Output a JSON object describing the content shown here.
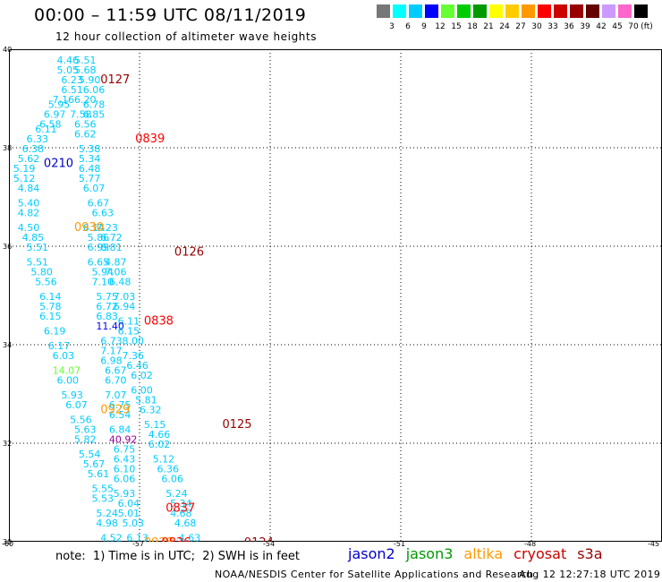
{
  "header": {
    "title": "00:00 – 11:59 UTC 08/11/2019",
    "subtitle": "12 hour collection of altimeter wave heights"
  },
  "color_scale": {
    "unit": "(ft)",
    "bins": [
      {
        "label": "3",
        "color": "#777777"
      },
      {
        "label": "6",
        "color": "#00ffff"
      },
      {
        "label": "9",
        "color": "#00ccff"
      },
      {
        "label": "12",
        "color": "#0000ff"
      },
      {
        "label": "15",
        "color": "#66ff33"
      },
      {
        "label": "18",
        "color": "#00cc00"
      },
      {
        "label": "21",
        "color": "#009900"
      },
      {
        "label": "24",
        "color": "#ffff00"
      },
      {
        "label": "27",
        "color": "#ffcc00"
      },
      {
        "label": "30",
        "color": "#ff9900"
      },
      {
        "label": "33",
        "color": "#ff0000"
      },
      {
        "label": "36",
        "color": "#cc0000"
      },
      {
        "label": "39",
        "color": "#990000"
      },
      {
        "label": "42",
        "color": "#660000"
      },
      {
        "label": "45",
        "color": "#cc99ff"
      },
      {
        "label": "70",
        "color": "#ff66cc"
      },
      {
        "label": "",
        "color": "#000000"
      }
    ]
  },
  "map": {
    "lat_ticks": [
      "40",
      "38",
      "36",
      "34",
      "32",
      "30"
    ],
    "lon_ticks": [
      "-60",
      "-57",
      "-54",
      "-51",
      "-48",
      "-45"
    ],
    "pass_labels": [
      {
        "text": "0127",
        "lat": 39.4,
        "lon": -57.9,
        "color": "#990000"
      },
      {
        "text": "0839",
        "lat": 38.2,
        "lon": -57.1,
        "color": "#ff0000"
      },
      {
        "text": "0210",
        "lat": 37.7,
        "lon": -59.2,
        "color": "#0000cc"
      },
      {
        "text": "0930",
        "lat": 36.4,
        "lon": -58.5,
        "color": "#ff9900"
      },
      {
        "text": "0126",
        "lat": 35.9,
        "lon": -56.2,
        "color": "#990000"
      },
      {
        "text": "0838",
        "lat": 34.5,
        "lon": -56.9,
        "color": "#ff0000"
      },
      {
        "text": "0929",
        "lat": 32.7,
        "lon": -57.9,
        "color": "#ff9900"
      },
      {
        "text": "0125",
        "lat": 32.4,
        "lon": -55.1,
        "color": "#990000"
      },
      {
        "text": "0837",
        "lat": 30.7,
        "lon": -56.4,
        "color": "#ff0000"
      },
      {
        "text": "0124",
        "lat": 30.0,
        "lon": -54.6,
        "color": "#990000"
      },
      {
        "text": "0928",
        "lat": 30.0,
        "lon": -56.9,
        "color": "#ff9900"
      },
      {
        "text": "0836",
        "lat": 30.0,
        "lon": -56.5,
        "color": "#ff0000"
      }
    ],
    "values": [
      {
        "text": "4.46",
        "lat": 39.8,
        "lon": -58.9,
        "color": "#00ccff"
      },
      {
        "text": "5.51",
        "lat": 39.8,
        "lon": -58.5,
        "color": "#00ccff"
      },
      {
        "text": "5.05",
        "lat": 39.6,
        "lon": -58.9,
        "color": "#00ccff"
      },
      {
        "text": "5.68",
        "lat": 39.6,
        "lon": -58.5,
        "color": "#00ccff"
      },
      {
        "text": "6.23",
        "lat": 39.4,
        "lon": -58.8,
        "color": "#00ccff"
      },
      {
        "text": "5.90",
        "lat": 39.4,
        "lon": -58.4,
        "color": "#00ccff"
      },
      {
        "text": "6.51",
        "lat": 39.2,
        "lon": -58.8,
        "color": "#00ccff"
      },
      {
        "text": "6.06",
        "lat": 39.2,
        "lon": -58.3,
        "color": "#00ccff"
      },
      {
        "text": "7.16",
        "lat": 39.0,
        "lon": -59.0,
        "color": "#00ccff"
      },
      {
        "text": "6.20",
        "lat": 39.0,
        "lon": -58.5,
        "color": "#00ccff"
      },
      {
        "text": "5.95",
        "lat": 38.9,
        "lon": -59.1,
        "color": "#00ccff"
      },
      {
        "text": "6.78",
        "lat": 38.9,
        "lon": -58.3,
        "color": "#00ccff"
      },
      {
        "text": "6.97",
        "lat": 38.7,
        "lon": -59.2,
        "color": "#00ccff"
      },
      {
        "text": "7.58",
        "lat": 38.7,
        "lon": -58.6,
        "color": "#00ccff"
      },
      {
        "text": "6.85",
        "lat": 38.7,
        "lon": -58.3,
        "color": "#00ccff"
      },
      {
        "text": "6.58",
        "lat": 38.5,
        "lon": -59.3,
        "color": "#00ccff"
      },
      {
        "text": "6.56",
        "lat": 38.5,
        "lon": -58.5,
        "color": "#00ccff"
      },
      {
        "text": "6.11",
        "lat": 38.4,
        "lon": -59.4,
        "color": "#00ccff"
      },
      {
        "text": "6.62",
        "lat": 38.3,
        "lon": -58.5,
        "color": "#00ccff"
      },
      {
        "text": "6.33",
        "lat": 38.2,
        "lon": -59.6,
        "color": "#00ccff"
      },
      {
        "text": "6.38",
        "lat": 38.0,
        "lon": -59.7,
        "color": "#00ccff"
      },
      {
        "text": "5.38",
        "lat": 38.0,
        "lon": -58.4,
        "color": "#00ccff"
      },
      {
        "text": "5.62",
        "lat": 37.8,
        "lon": -59.8,
        "color": "#00ccff"
      },
      {
        "text": "5.34",
        "lat": 37.8,
        "lon": -58.4,
        "color": "#00ccff"
      },
      {
        "text": "5.19",
        "lat": 37.6,
        "lon": -59.9,
        "color": "#00ccff"
      },
      {
        "text": "6.48",
        "lat": 37.6,
        "lon": -58.4,
        "color": "#00ccff"
      },
      {
        "text": "5.12",
        "lat": 37.4,
        "lon": -59.9,
        "color": "#00ccff"
      },
      {
        "text": "5.77",
        "lat": 37.4,
        "lon": -58.4,
        "color": "#00ccff"
      },
      {
        "text": "4.84",
        "lat": 37.2,
        "lon": -59.8,
        "color": "#00ccff"
      },
      {
        "text": "6.07",
        "lat": 37.2,
        "lon": -58.3,
        "color": "#00ccff"
      },
      {
        "text": "5.40",
        "lat": 36.9,
        "lon": -59.8,
        "color": "#00ccff"
      },
      {
        "text": "6.67",
        "lat": 36.9,
        "lon": -58.2,
        "color": "#00ccff"
      },
      {
        "text": "4.82",
        "lat": 36.7,
        "lon": -59.8,
        "color": "#00ccff"
      },
      {
        "text": "6.63",
        "lat": 36.7,
        "lon": -58.1,
        "color": "#00ccff"
      },
      {
        "text": "4.50",
        "lat": 36.4,
        "lon": -59.8,
        "color": "#00ccff"
      },
      {
        "text": "6.14",
        "lat": 36.4,
        "lon": -58.3,
        "color": "#00ccff"
      },
      {
        "text": "7.23",
        "lat": 36.4,
        "lon": -58.0,
        "color": "#00ccff"
      },
      {
        "text": "4.85",
        "lat": 36.2,
        "lon": -59.7,
        "color": "#00ccff"
      },
      {
        "text": "5.86",
        "lat": 36.2,
        "lon": -58.2,
        "color": "#00ccff"
      },
      {
        "text": "6.72",
        "lat": 36.2,
        "lon": -57.9,
        "color": "#00ccff"
      },
      {
        "text": "5.51",
        "lat": 36.0,
        "lon": -59.6,
        "color": "#00ccff"
      },
      {
        "text": "6.99",
        "lat": 36.0,
        "lon": -58.2,
        "color": "#00ccff"
      },
      {
        "text": "6.81",
        "lat": 36.0,
        "lon": -57.9,
        "color": "#00ccff"
      },
      {
        "text": "5.51",
        "lat": 35.7,
        "lon": -59.6,
        "color": "#00ccff"
      },
      {
        "text": "6.65",
        "lat": 35.7,
        "lon": -58.2,
        "color": "#00ccff"
      },
      {
        "text": "4.87",
        "lat": 35.7,
        "lon": -57.8,
        "color": "#00ccff"
      },
      {
        "text": "5.80",
        "lat": 35.5,
        "lon": -59.5,
        "color": "#00ccff"
      },
      {
        "text": "5.94",
        "lat": 35.5,
        "lon": -58.1,
        "color": "#00ccff"
      },
      {
        "text": "7.06",
        "lat": 35.5,
        "lon": -57.8,
        "color": "#00ccff"
      },
      {
        "text": "5.56",
        "lat": 35.3,
        "lon": -59.4,
        "color": "#00ccff"
      },
      {
        "text": "7.10",
        "lat": 35.3,
        "lon": -58.1,
        "color": "#00ccff"
      },
      {
        "text": "6.48",
        "lat": 35.3,
        "lon": -57.7,
        "color": "#00ccff"
      },
      {
        "text": "6.14",
        "lat": 35.0,
        "lon": -59.3,
        "color": "#00ccff"
      },
      {
        "text": "5.75",
        "lat": 35.0,
        "lon": -58.0,
        "color": "#00ccff"
      },
      {
        "text": "7.03",
        "lat": 35.0,
        "lon": -57.6,
        "color": "#00ccff"
      },
      {
        "text": "5.78",
        "lat": 34.8,
        "lon": -59.3,
        "color": "#00ccff"
      },
      {
        "text": "6.72",
        "lat": 34.8,
        "lon": -58.0,
        "color": "#00ccff"
      },
      {
        "text": "6.94",
        "lat": 34.8,
        "lon": -57.6,
        "color": "#00ccff"
      },
      {
        "text": "6.15",
        "lat": 34.6,
        "lon": -59.3,
        "color": "#00ccff"
      },
      {
        "text": "6.83",
        "lat": 34.6,
        "lon": -58.0,
        "color": "#00ccff"
      },
      {
        "text": "6.11",
        "lat": 34.5,
        "lon": -57.5,
        "color": "#00ccff"
      },
      {
        "text": "6.19",
        "lat": 34.3,
        "lon": -59.2,
        "color": "#00ccff"
      },
      {
        "text": "11.40",
        "lat": 34.4,
        "lon": -58.0,
        "color": "#0000ff"
      },
      {
        "text": "6.15",
        "lat": 34.3,
        "lon": -57.5,
        "color": "#00ccff"
      },
      {
        "text": "6.73",
        "lat": 34.1,
        "lon": -57.9,
        "color": "#00ccff"
      },
      {
        "text": "8.00",
        "lat": 34.1,
        "lon": -57.4,
        "color": "#00ccff"
      },
      {
        "text": "6.17",
        "lat": 34.0,
        "lon": -59.1,
        "color": "#00ccff"
      },
      {
        "text": "7.17",
        "lat": 33.9,
        "lon": -57.9,
        "color": "#00ccff"
      },
      {
        "text": "7.36",
        "lat": 33.8,
        "lon": -57.4,
        "color": "#00ccff"
      },
      {
        "text": "6.03",
        "lat": 33.8,
        "lon": -59.0,
        "color": "#00ccff"
      },
      {
        "text": "6.98",
        "lat": 33.7,
        "lon": -57.9,
        "color": "#00ccff"
      },
      {
        "text": "6.46",
        "lat": 33.6,
        "lon": -57.3,
        "color": "#00ccff"
      },
      {
        "text": "14.07",
        "lat": 33.5,
        "lon": -59.0,
        "color": "#66ff33"
      },
      {
        "text": "6.67",
        "lat": 33.5,
        "lon": -57.8,
        "color": "#00ccff"
      },
      {
        "text": "6.02",
        "lat": 33.4,
        "lon": -57.2,
        "color": "#00ccff"
      },
      {
        "text": "6.00",
        "lat": 33.3,
        "lon": -58.9,
        "color": "#00ccff"
      },
      {
        "text": "6.70",
        "lat": 33.3,
        "lon": -57.8,
        "color": "#00ccff"
      },
      {
        "text": "6.00",
        "lat": 33.1,
        "lon": -57.2,
        "color": "#00ccff"
      },
      {
        "text": "5.93",
        "lat": 33.0,
        "lon": -58.8,
        "color": "#00ccff"
      },
      {
        "text": "7.07",
        "lat": 33.0,
        "lon": -57.8,
        "color": "#00ccff"
      },
      {
        "text": "5.81",
        "lat": 32.9,
        "lon": -57.1,
        "color": "#00ccff"
      },
      {
        "text": "6.07",
        "lat": 32.8,
        "lon": -58.7,
        "color": "#00ccff"
      },
      {
        "text": "6.75",
        "lat": 32.8,
        "lon": -57.7,
        "color": "#00ccff"
      },
      {
        "text": "6.32",
        "lat": 32.7,
        "lon": -57.0,
        "color": "#00ccff"
      },
      {
        "text": "5.56",
        "lat": 32.5,
        "lon": -58.6,
        "color": "#00ccff"
      },
      {
        "text": "6.54",
        "lat": 32.6,
        "lon": -57.7,
        "color": "#00ccff"
      },
      {
        "text": "5.15",
        "lat": 32.4,
        "lon": -56.9,
        "color": "#00ccff"
      },
      {
        "text": "5.63",
        "lat": 32.3,
        "lon": -58.5,
        "color": "#00ccff"
      },
      {
        "text": "6.84",
        "lat": 32.3,
        "lon": -57.7,
        "color": "#00ccff"
      },
      {
        "text": "4.66",
        "lat": 32.2,
        "lon": -56.8,
        "color": "#00ccff"
      },
      {
        "text": "5.82",
        "lat": 32.1,
        "lon": -58.5,
        "color": "#00ccff"
      },
      {
        "text": "40.92",
        "lat": 32.1,
        "lon": -57.7,
        "color": "#990099"
      },
      {
        "text": "6.02",
        "lat": 32.0,
        "lon": -56.8,
        "color": "#00ccff"
      },
      {
        "text": "5.54",
        "lat": 31.8,
        "lon": -58.4,
        "color": "#00ccff"
      },
      {
        "text": "6.75",
        "lat": 31.9,
        "lon": -57.6,
        "color": "#00ccff"
      },
      {
        "text": "5.12",
        "lat": 31.7,
        "lon": -56.7,
        "color": "#00ccff"
      },
      {
        "text": "5.67",
        "lat": 31.6,
        "lon": -58.3,
        "color": "#00ccff"
      },
      {
        "text": "6.43",
        "lat": 31.7,
        "lon": -57.6,
        "color": "#00ccff"
      },
      {
        "text": "6.36",
        "lat": 31.5,
        "lon": -56.6,
        "color": "#00ccff"
      },
      {
        "text": "6.10",
        "lat": 31.5,
        "lon": -57.6,
        "color": "#00ccff"
      },
      {
        "text": "5.61",
        "lat": 31.4,
        "lon": -58.2,
        "color": "#00ccff"
      },
      {
        "text": "6.06",
        "lat": 31.3,
        "lon": -57.6,
        "color": "#00ccff"
      },
      {
        "text": "6.06",
        "lat": 31.3,
        "lon": -56.5,
        "color": "#00ccff"
      },
      {
        "text": "5.55",
        "lat": 31.1,
        "lon": -58.1,
        "color": "#00ccff"
      },
      {
        "text": "5.93",
        "lat": 31.0,
        "lon": -57.6,
        "color": "#00ccff"
      },
      {
        "text": "5.24",
        "lat": 31.0,
        "lon": -56.4,
        "color": "#00ccff"
      },
      {
        "text": "5.53",
        "lat": 30.9,
        "lon": -58.1,
        "color": "#00ccff"
      },
      {
        "text": "6.04",
        "lat": 30.8,
        "lon": -57.5,
        "color": "#00ccff"
      },
      {
        "text": "5.34",
        "lat": 30.8,
        "lon": -56.3,
        "color": "#00ccff"
      },
      {
        "text": "5.24",
        "lat": 30.6,
        "lon": -58.0,
        "color": "#00ccff"
      },
      {
        "text": "5.01",
        "lat": 30.6,
        "lon": -57.5,
        "color": "#00ccff"
      },
      {
        "text": "4.68",
        "lat": 30.6,
        "lon": -56.3,
        "color": "#00ccff"
      },
      {
        "text": "4.98",
        "lat": 30.4,
        "lon": -58.0,
        "color": "#00ccff"
      },
      {
        "text": "5.03",
        "lat": 30.4,
        "lon": -57.4,
        "color": "#00ccff"
      },
      {
        "text": "4.68",
        "lat": 30.4,
        "lon": -56.2,
        "color": "#00ccff"
      },
      {
        "text": "4.52",
        "lat": 30.1,
        "lon": -57.9,
        "color": "#00ccff"
      },
      {
        "text": "6.13",
        "lat": 30.1,
        "lon": -57.3,
        "color": "#00ccff"
      },
      {
        "text": "4.63",
        "lat": 30.1,
        "lon": -56.1,
        "color": "#00ccff"
      }
    ]
  },
  "footer": {
    "note": "note:  1) Time is in UTC;  2) SWH is in feet",
    "credit": "NOAA/NESDIS Center for Satellite Applications and Research",
    "timestamp": "Aug 12 12:27:18 UTC 2019",
    "legend": [
      {
        "label": "jason2",
        "color": "#0000cc"
      },
      {
        "label": "jason3",
        "color": "#009900"
      },
      {
        "label": "altika",
        "color": "#ff9900"
      },
      {
        "label": "cryosat",
        "color": "#cc0000"
      },
      {
        "label": "s3a",
        "color": "#990000"
      }
    ]
  }
}
